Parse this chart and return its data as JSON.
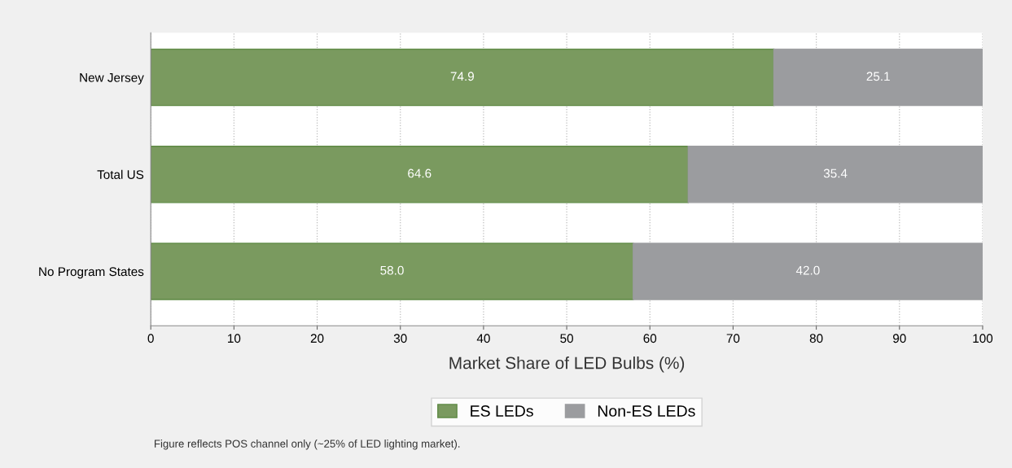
{
  "chart_data": {
    "type": "bar",
    "orientation": "horizontal",
    "stacked": true,
    "categories": [
      "New Jersey",
      "Total US",
      "No Program States"
    ],
    "series": [
      {
        "name": "ES LEDs",
        "color": "#7a9a5f",
        "values": [
          74.9,
          64.6,
          58.0
        ],
        "value_labels": [
          "74.9",
          "64.6",
          "58.0"
        ]
      },
      {
        "name": "Non-ES LEDs",
        "color": "#9b9c9f",
        "values": [
          25.1,
          35.4,
          42.0
        ],
        "value_labels": [
          "25.1",
          "35.4",
          "42.0"
        ]
      }
    ],
    "xlabel": "Market Share of LED Bulbs (%)",
    "xlim": [
      0,
      100
    ],
    "xticks": [
      0,
      10,
      20,
      30,
      40,
      50,
      60,
      70,
      80,
      90,
      100
    ],
    "grid": "x",
    "legend": "bottom",
    "annotations": [
      "Figure reflects POS channel only (~25% of LED lighting market)."
    ]
  }
}
